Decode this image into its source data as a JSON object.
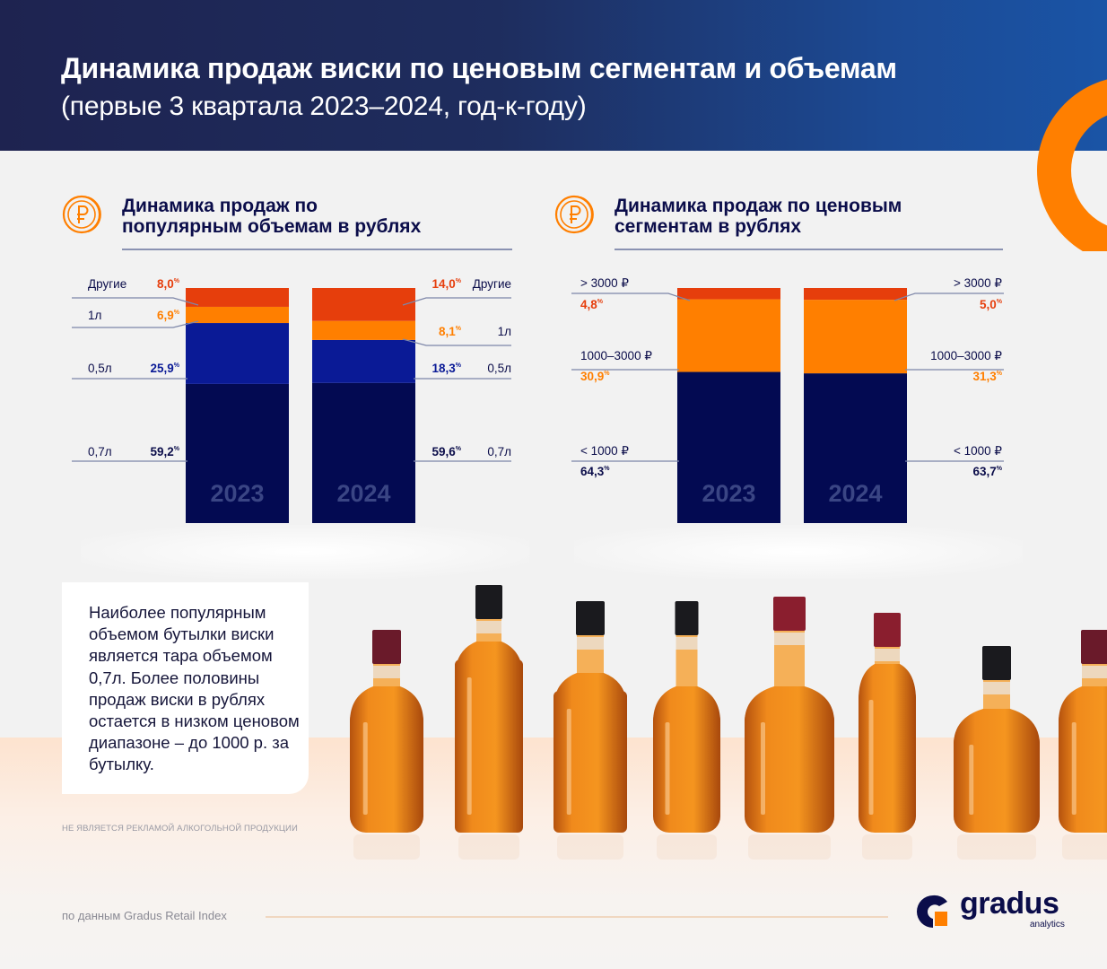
{
  "header": {
    "title": "Динамика продаж виски по ценовым сегментам и объемам",
    "subtitle": "(первые 3 квартала 2023–2024, год-к-году)"
  },
  "colors": {
    "header_dark": "#1e2350",
    "header_blue": "#1a54a6",
    "accent_orange": "#ff7f00",
    "red_orange": "#e63e0c",
    "royal_blue": "#0a1a96",
    "navy": "#030a52",
    "year_label": "#3a4584",
    "text_dark": "#0b0d4a"
  },
  "sections": {
    "volumes": {
      "title_line1": "Динамика продаж по",
      "title_line2": "популярным объемам в рублях",
      "icon": "ruble-coin-icon"
    },
    "prices": {
      "title_line1": "Динамика продаж по ценовым",
      "title_line2": "сегментам в рублях",
      "icon": "ruble-coin-icon"
    }
  },
  "chart_data": [
    {
      "type": "bar",
      "stacked": true,
      "normalized": true,
      "title": "Динамика продаж по популярным объемам в рублях",
      "categories": [
        "2023",
        "2024"
      ],
      "unit": "%",
      "series": [
        {
          "name": "0,7л",
          "color": "#030a52",
          "values": [
            59.2,
            59.6
          ],
          "labels": [
            "59,2",
            "59,6"
          ]
        },
        {
          "name": "0,5л",
          "color": "#0a1a96",
          "values": [
            25.9,
            18.3
          ],
          "labels": [
            "25,9",
            "18,3"
          ]
        },
        {
          "name": "1л",
          "color": "#ff7f00",
          "values": [
            6.9,
            8.1
          ],
          "labels": [
            "6,9",
            "8,1"
          ]
        },
        {
          "name": "Другие",
          "color": "#e63e0c",
          "values": [
            8.0,
            14.0
          ],
          "labels": [
            "8,0",
            "14,0"
          ]
        }
      ],
      "label_colors": [
        "#0b0d4a",
        "#0a1a96",
        "#ff7f00",
        "#e63e0c"
      ],
      "ylim": [
        0,
        100
      ]
    },
    {
      "type": "bar",
      "stacked": true,
      "normalized": true,
      "title": "Динамика продаж по ценовым сегментам в рублях",
      "categories": [
        "2023",
        "2024"
      ],
      "unit": "%",
      "series": [
        {
          "name": "< 1000 ₽",
          "color": "#030a52",
          "values": [
            64.3,
            63.7
          ],
          "labels": [
            "64,3",
            "63,7"
          ]
        },
        {
          "name": "1000–3000 ₽",
          "color": "#ff7f00",
          "values": [
            30.9,
            31.3
          ],
          "labels": [
            "30,9",
            "31,3"
          ]
        },
        {
          "name": "> 3000 ₽",
          "color": "#e63e0c",
          "values": [
            4.8,
            5.0
          ],
          "labels": [
            "4,8",
            "5,0"
          ]
        }
      ],
      "label_colors": [
        "#0b0d4a",
        "#ff7f00",
        "#e63e0c"
      ],
      "ylim": [
        0,
        100
      ]
    }
  ],
  "note": {
    "text": "Наиболее популярным объемом бутылки виски является тара объемом 0,7л. Более половины продаж виски в рублях остается в низком ценовом диапазоне – до 1000 р. за бутылку."
  },
  "disclaimer": "НЕ ЯВЛЯЕТСЯ РЕКЛАМОЙ АЛКОГОЛЬНОЙ ПРОДУКЦИИ",
  "footer": {
    "source": "по данным Gradus Retail Index",
    "logo_name": "gradus",
    "logo_sub": "analytics"
  },
  "bottles": [
    {
      "cap": "#6a1a2a",
      "shape": "round"
    },
    {
      "cap": "#1a1a1e",
      "shape": "tall-square"
    },
    {
      "cap": "#1a1a1e",
      "shape": "square"
    },
    {
      "cap": "#1a1a1e",
      "shape": "slim"
    },
    {
      "cap": "#8a1e2e",
      "shape": "flask"
    },
    {
      "cap": "#8a1e2e",
      "shape": "narrow"
    },
    {
      "cap": "#1a1a1e",
      "shape": "bell"
    },
    {
      "cap": "#6a1a2a",
      "shape": "round"
    }
  ]
}
